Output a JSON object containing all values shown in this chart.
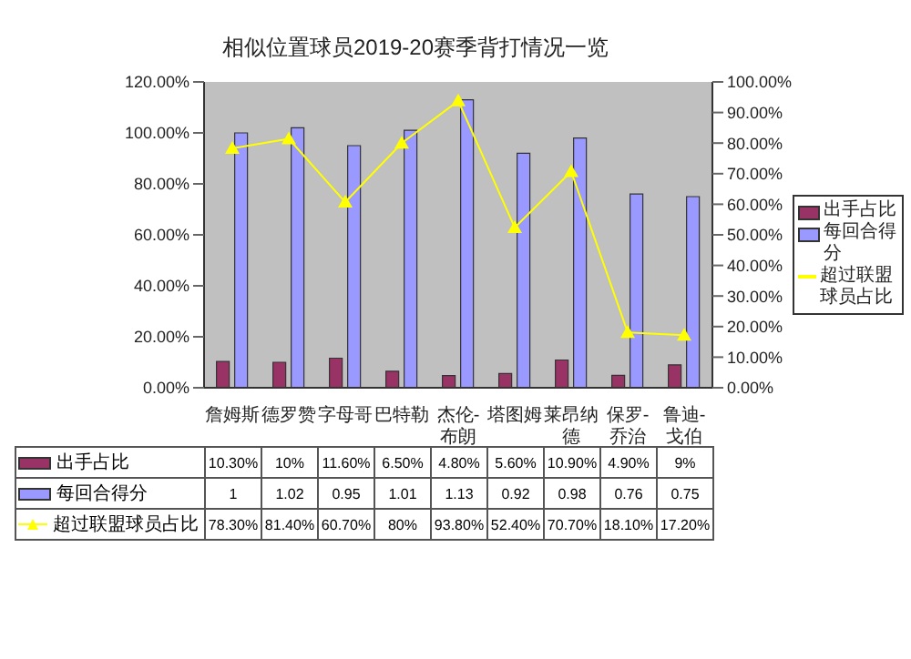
{
  "chart_data": {
    "type": "bar",
    "title": "相似位置球员2019-20赛季背打情况一览",
    "categories": [
      "詹姆斯",
      "德罗赞",
      "字母哥",
      "巴特勒",
      "杰伦-布朗",
      "塔图姆",
      "莱昂纳德",
      "保罗-乔治",
      "鲁迪-戈伯"
    ],
    "series": [
      {
        "name": "出手占比",
        "color": "#993366",
        "values": [
          0.103,
          0.1,
          0.116,
          0.065,
          0.048,
          0.056,
          0.109,
          0.049,
          0.09
        ],
        "value_labels": [
          "10.30%",
          "10%",
          "11.60%",
          "6.50%",
          "4.80%",
          "5.60%",
          "10.90%",
          "4.90%",
          "9%"
        ]
      },
      {
        "name": "每回合得分",
        "color": "#9999ff",
        "values": [
          1,
          1.02,
          0.95,
          1.01,
          1.13,
          0.92,
          0.98,
          0.76,
          0.75
        ],
        "value_labels": [
          "1",
          "1.02",
          "0.95",
          "1.01",
          "1.13",
          "0.92",
          "0.98",
          "0.76",
          "0.75"
        ]
      },
      {
        "name": "超过联盟球员占比",
        "type": "line",
        "axis": "y2",
        "color": "#ffff00",
        "marker": "triangle",
        "values": [
          78.3,
          81.4,
          60.7,
          80,
          93.8,
          52.4,
          70.7,
          18.1,
          17.2
        ],
        "value_labels": [
          "78.30%",
          "81.40%",
          "60.70%",
          "80%",
          "93.80%",
          "52.40%",
          "70.70%",
          "18.10%",
          "17.20%"
        ]
      }
    ],
    "ylim": [
      0,
      1.2
    ],
    "yticks": [
      {
        "value": 0,
        "label": "0.00%"
      },
      {
        "value": 0.2,
        "label": "20.00%"
      },
      {
        "value": 0.4,
        "label": "40.00%"
      },
      {
        "value": 0.6,
        "label": "60.00%"
      },
      {
        "value": 0.8,
        "label": "80.00%"
      },
      {
        "value": 1,
        "label": "100.00%"
      },
      {
        "value": 1.2,
        "label": "120.00%"
      }
    ],
    "y2lim": [
      0,
      100
    ],
    "y2ticks": [
      {
        "value": 0,
        "label": "0.00%"
      },
      {
        "value": 10,
        "label": "10.00%"
      },
      {
        "value": 20,
        "label": "20.00%"
      },
      {
        "value": 30,
        "label": "30.00%"
      },
      {
        "value": 40,
        "label": "40.00%"
      },
      {
        "value": 50,
        "label": "50.00%"
      },
      {
        "value": 60,
        "label": "60.00%"
      },
      {
        "value": 70,
        "label": "70.00%"
      },
      {
        "value": 80,
        "label": "80.00%"
      },
      {
        "value": 90,
        "label": "90.00%"
      },
      {
        "value": 100,
        "label": "100.00%"
      }
    ],
    "legend": "right",
    "grid": false
  }
}
